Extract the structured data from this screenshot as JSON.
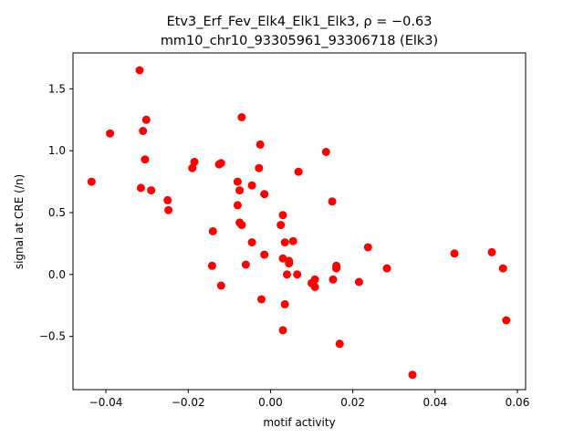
{
  "chart_data": {
    "type": "scatter",
    "title_line1": "Etv3_Erf_Fev_Elk4_Elk1_Elk3, ρ = −0.63",
    "title_line2": "mm10_chr10_93305961_93306718 (Elk3)",
    "xlabel": "motif activity",
    "ylabel": "signal at CRE (/n)",
    "xlim": [
      -0.048,
      0.062
    ],
    "ylim": [
      -0.93,
      1.79
    ],
    "xticks": [
      -0.04,
      -0.02,
      0.0,
      0.02,
      0.04,
      0.06
    ],
    "xtick_labels": [
      "−0.04",
      "−0.02",
      "0.00",
      "0.02",
      "0.04",
      "0.06"
    ],
    "yticks": [
      -0.5,
      0.0,
      0.5,
      1.0,
      1.5
    ],
    "ytick_labels": [
      "−0.5",
      "0.0",
      "0.5",
      "1.0",
      "1.5"
    ],
    "marker_color": "#ff0000",
    "grid": false,
    "points": [
      [
        -0.0435,
        0.75
      ],
      [
        -0.039,
        1.14
      ],
      [
        -0.0318,
        1.65
      ],
      [
        -0.031,
        1.16
      ],
      [
        -0.0302,
        1.25
      ],
      [
        -0.0305,
        0.93
      ],
      [
        -0.0315,
        0.7
      ],
      [
        -0.029,
        0.68
      ],
      [
        -0.025,
        0.6
      ],
      [
        -0.0248,
        0.52
      ],
      [
        -0.0185,
        0.91
      ],
      [
        -0.019,
        0.86
      ],
      [
        -0.014,
        0.35
      ],
      [
        -0.0142,
        0.07
      ],
      [
        -0.012,
        0.9
      ],
      [
        -0.0125,
        0.89
      ],
      [
        -0.012,
        -0.09
      ],
      [
        -0.007,
        1.27
      ],
      [
        -0.008,
        0.75
      ],
      [
        -0.0075,
        0.68
      ],
      [
        -0.008,
        0.56
      ],
      [
        -0.0075,
        0.42
      ],
      [
        -0.007,
        0.4
      ],
      [
        -0.006,
        0.08
      ],
      [
        -0.0045,
        0.72
      ],
      [
        -0.0045,
        0.26
      ],
      [
        -0.0025,
        1.05
      ],
      [
        -0.0028,
        0.86
      ],
      [
        -0.0015,
        0.65
      ],
      [
        -0.0015,
        0.16
      ],
      [
        -0.0022,
        -0.2
      ],
      [
        0.0025,
        0.4
      ],
      [
        0.003,
        0.48
      ],
      [
        0.0035,
        0.26
      ],
      [
        0.003,
        0.13
      ],
      [
        0.004,
        0.0
      ],
      [
        0.0045,
        0.09
      ],
      [
        0.0045,
        0.11
      ],
      [
        0.0055,
        0.27
      ],
      [
        0.0065,
        0.0
      ],
      [
        0.0068,
        0.83
      ],
      [
        0.0035,
        -0.24
      ],
      [
        0.003,
        -0.45
      ],
      [
        0.01,
        -0.07
      ],
      [
        0.0108,
        -0.04
      ],
      [
        0.0108,
        -0.1
      ],
      [
        0.0135,
        0.99
      ],
      [
        0.015,
        0.59
      ],
      [
        0.0152,
        -0.04
      ],
      [
        0.016,
        0.07
      ],
      [
        0.016,
        0.05
      ],
      [
        0.0168,
        -0.56
      ],
      [
        0.0215,
        -0.06
      ],
      [
        0.0237,
        0.22
      ],
      [
        0.0283,
        0.05
      ],
      [
        0.0345,
        -0.81
      ],
      [
        0.0447,
        0.17
      ],
      [
        0.0538,
        0.18
      ],
      [
        0.0565,
        0.05
      ],
      [
        0.0573,
        -0.37
      ]
    ]
  }
}
